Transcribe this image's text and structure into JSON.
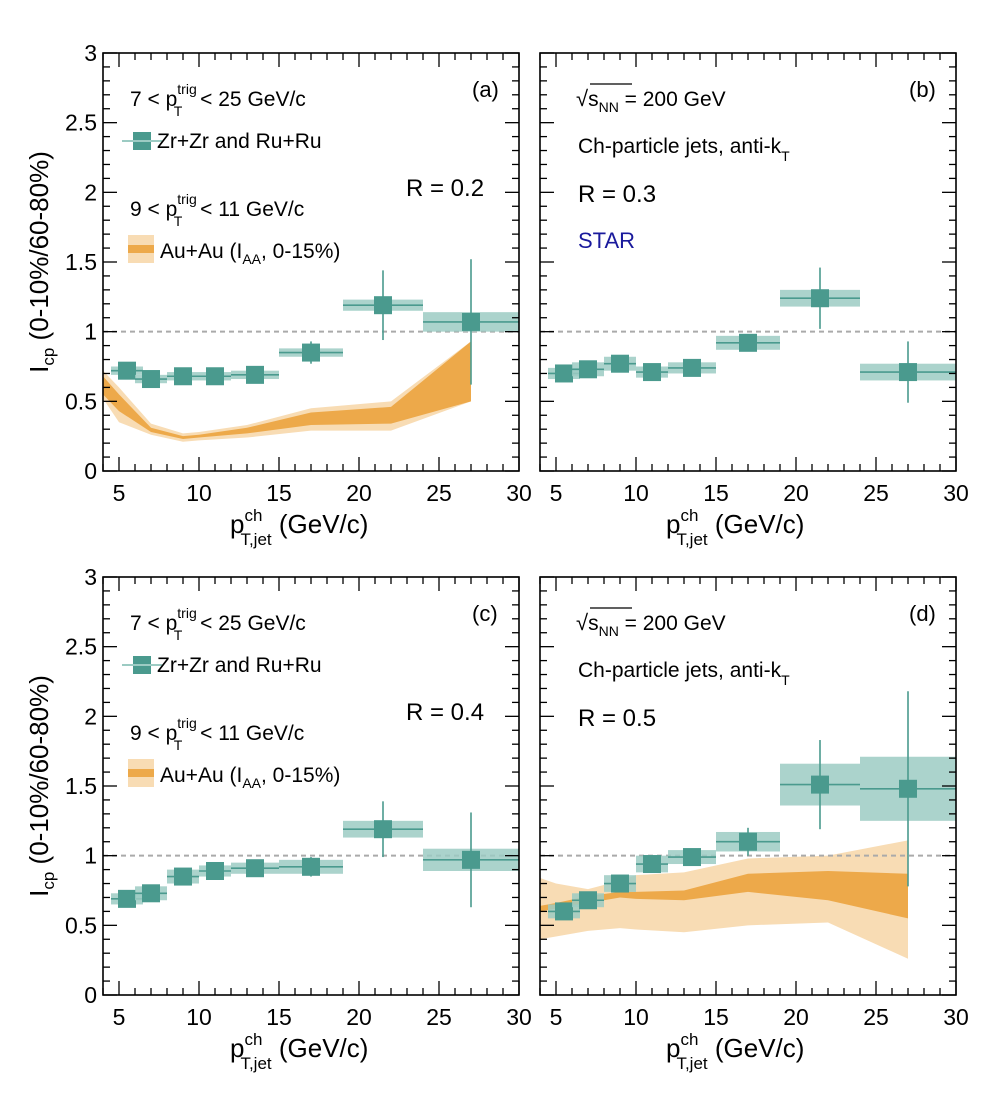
{
  "colors": {
    "teal": "#4a9a8e",
    "teal_band": "#9ccbc3",
    "orange": "#eda94a",
    "orange_light": "#f8dcb4",
    "dashed_ref": "#aaaaaa",
    "star_text": "#1a1a9c"
  },
  "texts": {
    "ylabel_main": "I",
    "ylabel_sub": "cp",
    "ylabel_rest": " (0-10%/60-80%)",
    "xlabel_main": "p",
    "xlabel_sup": "ch",
    "xlabel_sub": "T,jet",
    "xlabel_unit": " (GeV/c)",
    "leg1_pre": "7 < p",
    "leg1_sup": "trig",
    "leg1_sub": "T",
    "leg1_post": " < 25 GeV/c",
    "leg_zr": "Zr+Zr and Ru+Ru",
    "leg2_pre": "9 < p",
    "leg2_sup": "trig",
    "leg2_sub": "T",
    "leg2_post": " < 11 GeV/c",
    "leg_au_pre": "Au+Au (I",
    "leg_au_sub": "AA",
    "leg_au_post": ", 0-15%)",
    "energy_pre": "s",
    "energy_sub": "NN",
    "energy_post": " = 200 GeV",
    "jets_pre": "Ch-particle jets, anti-k",
    "jets_sub": "T",
    "star": "STAR"
  },
  "chart_data": [
    {
      "type": "scatter",
      "panel": "(a)",
      "R_label": "R = 0.2",
      "xlim": [
        4,
        30
      ],
      "ylim": [
        0,
        3
      ],
      "xticks": [
        "5",
        "10",
        "15",
        "20",
        "25",
        "30"
      ],
      "yticks": [
        "0",
        "0.5",
        "1",
        "1.5",
        "2",
        "2.5",
        "3"
      ],
      "reference_line": 1,
      "series": [
        {
          "name": "Zr+Zr and Ru+Ru",
          "x": [
            5.5,
            7.0,
            9.0,
            11.0,
            13.5,
            17.0,
            21.5,
            27.0
          ],
          "y": [
            0.72,
            0.66,
            0.68,
            0.68,
            0.69,
            0.85,
            1.19,
            1.07
          ],
          "xerr": [
            1.0,
            1.0,
            1.0,
            1.0,
            1.5,
            2.0,
            2.5,
            3.0
          ],
          "stat_err": [
            0.04,
            0.04,
            0.04,
            0.04,
            0.04,
            0.08,
            0.25,
            0.45
          ],
          "sys_err": [
            0.03,
            0.03,
            0.03,
            0.03,
            0.03,
            0.03,
            0.04,
            0.07
          ]
        },
        {
          "name": "Au+Au (IAA, 0-15%)",
          "x": [
            4,
            5,
            7,
            9,
            10,
            13,
            17,
            22,
            27
          ],
          "y_low": [
            0.55,
            0.43,
            0.28,
            0.23,
            0.24,
            0.27,
            0.33,
            0.34,
            0.5
          ],
          "y_high": [
            0.68,
            0.55,
            0.31,
            0.25,
            0.26,
            0.31,
            0.42,
            0.46,
            0.93
          ],
          "band_low": [
            0.52,
            0.35,
            0.26,
            0.21,
            0.22,
            0.24,
            0.29,
            0.29,
            0.5
          ],
          "band_high": [
            0.72,
            0.6,
            0.34,
            0.27,
            0.28,
            0.33,
            0.45,
            0.5,
            0.93
          ]
        }
      ]
    },
    {
      "type": "scatter",
      "panel": "(b)",
      "R_label": "R = 0.3",
      "xlim": [
        4,
        30
      ],
      "ylim": [
        0,
        3
      ],
      "xticks": [
        "5",
        "10",
        "15",
        "20",
        "25",
        "30"
      ],
      "reference_line": 1,
      "series": [
        {
          "name": "Zr+Zr and Ru+Ru",
          "x": [
            5.5,
            7.0,
            9.0,
            11.0,
            13.5,
            17.0,
            21.5,
            27.0
          ],
          "y": [
            0.7,
            0.73,
            0.77,
            0.71,
            0.74,
            0.92,
            1.24,
            0.71
          ],
          "xerr": [
            1.0,
            1.0,
            1.0,
            1.0,
            1.5,
            2.0,
            2.5,
            3.0
          ],
          "stat_err": [
            0.03,
            0.03,
            0.03,
            0.03,
            0.03,
            0.06,
            0.22,
            0.22
          ],
          "sys_err": [
            0.04,
            0.05,
            0.05,
            0.04,
            0.04,
            0.05,
            0.06,
            0.06
          ]
        }
      ]
    },
    {
      "type": "scatter",
      "panel": "(c)",
      "R_label": "R = 0.4",
      "xlim": [
        4,
        30
      ],
      "ylim": [
        0,
        3
      ],
      "xticks": [
        "5",
        "10",
        "15",
        "20",
        "25",
        "30"
      ],
      "yticks": [
        "0",
        "0.5",
        "1",
        "1.5",
        "2",
        "2.5",
        "3"
      ],
      "reference_line": 1,
      "series": [
        {
          "name": "Zr+Zr and Ru+Ru",
          "x": [
            5.5,
            7.0,
            9.0,
            11.0,
            13.5,
            17.0,
            21.5,
            27.0
          ],
          "y": [
            0.69,
            0.73,
            0.85,
            0.89,
            0.91,
            0.92,
            1.19,
            0.97
          ],
          "xerr": [
            1.0,
            1.0,
            1.0,
            1.0,
            1.5,
            2.0,
            2.5,
            3.0
          ],
          "stat_err": [
            0.03,
            0.03,
            0.04,
            0.04,
            0.04,
            0.07,
            0.2,
            0.34
          ],
          "sys_err": [
            0.04,
            0.05,
            0.05,
            0.04,
            0.04,
            0.05,
            0.06,
            0.08
          ]
        }
      ]
    },
    {
      "type": "scatter",
      "panel": "(d)",
      "R_label": "R = 0.5",
      "xlim": [
        4,
        30
      ],
      "ylim": [
        0,
        3
      ],
      "xticks": [
        "5",
        "10",
        "15",
        "20",
        "25",
        "30"
      ],
      "reference_line": 1,
      "series": [
        {
          "name": "Zr+Zr and Ru+Ru",
          "x": [
            5.5,
            7.0,
            9.0,
            11.0,
            13.5,
            17.0,
            21.5,
            27.0
          ],
          "y": [
            0.6,
            0.68,
            0.8,
            0.94,
            0.99,
            1.1,
            1.51,
            1.48
          ],
          "xerr": [
            1.0,
            1.0,
            1.0,
            1.0,
            1.5,
            2.0,
            2.5,
            3.0
          ],
          "stat_err": [
            0.04,
            0.04,
            0.05,
            0.06,
            0.06,
            0.1,
            0.32,
            0.7
          ],
          "sys_err": [
            0.05,
            0.05,
            0.06,
            0.06,
            0.05,
            0.07,
            0.15,
            0.23
          ]
        },
        {
          "name": "Au+Au (IAA, 0-15%)",
          "x": [
            4,
            5,
            7,
            9,
            10,
            13,
            17,
            22,
            27
          ],
          "y_low": [
            0.6,
            0.62,
            0.66,
            0.7,
            0.69,
            0.68,
            0.74,
            0.68,
            0.55
          ],
          "y_high": [
            0.64,
            0.66,
            0.71,
            0.74,
            0.74,
            0.75,
            0.87,
            0.89,
            0.87
          ],
          "band_low": [
            0.4,
            0.42,
            0.46,
            0.48,
            0.47,
            0.45,
            0.5,
            0.52,
            0.26
          ],
          "band_high": [
            0.84,
            0.8,
            0.76,
            0.82,
            0.86,
            0.88,
            0.98,
            1.0,
            1.11
          ]
        }
      ]
    }
  ]
}
